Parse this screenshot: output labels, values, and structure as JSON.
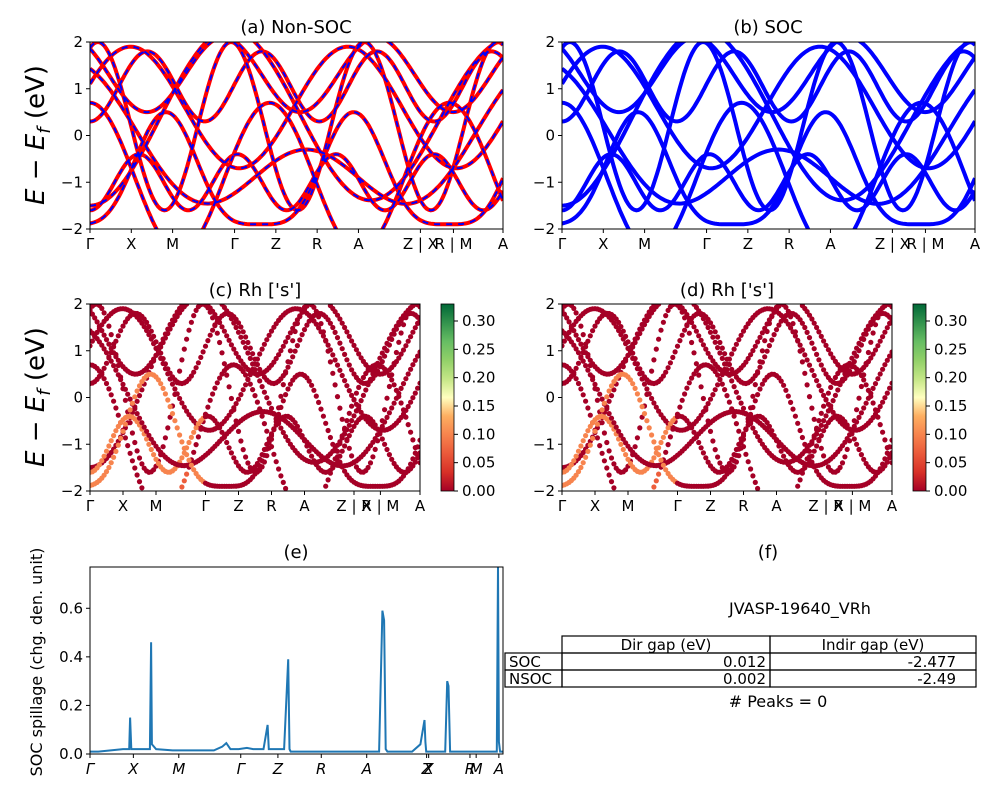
{
  "chart_data": [
    {
      "panel": "a",
      "type": "line",
      "title": "(a) Non-SOC",
      "ylabel": "E − E_f (eV)",
      "ylim": [
        -2,
        2
      ],
      "yticks": [
        "−2",
        "−1",
        "0",
        "1",
        "2"
      ],
      "kpath_labels": [
        "Γ",
        "X",
        "M",
        "Γ",
        "Z",
        "R",
        "A",
        "Z | X",
        "R | M",
        "A"
      ],
      "kpath_positions": [
        0,
        0.1,
        0.2,
        0.35,
        0.45,
        0.55,
        0.65,
        0.8,
        0.88,
        1.0
      ],
      "series": [
        {
          "color": "#ff0000",
          "style": "solid",
          "values_sampled": [
            -1.0,
            0.6,
            1.9,
            -1.9,
            0.4,
            1.95,
            -0.9,
            0.3,
            -1.6,
            -0.5,
            1.0,
            0.2,
            -1.8
          ]
        },
        {
          "color": "#0000ff",
          "style": "dashed",
          "values_sampled": [
            -1.0,
            0.6,
            1.9,
            -1.9,
            0.4,
            1.95,
            -0.9,
            0.3,
            -1.6,
            -0.5,
            1.0,
            0.2,
            -1.8
          ]
        }
      ]
    },
    {
      "panel": "b",
      "type": "line",
      "title": "(b) SOC",
      "ylim": [
        -2,
        2
      ],
      "yticks": [
        "−2",
        "−1",
        "0",
        "1",
        "2"
      ],
      "kpath_labels": [
        "Γ",
        "X",
        "M",
        "Γ",
        "Z",
        "R",
        "A",
        "Z | X",
        "R | M",
        "A"
      ],
      "kpath_positions": [
        0,
        0.1,
        0.2,
        0.35,
        0.45,
        0.55,
        0.65,
        0.8,
        0.88,
        1.0
      ],
      "series": [
        {
          "color": "#0000ff",
          "style": "solid",
          "values_sampled": [
            -1.0,
            0.6,
            1.9,
            -1.9,
            0.4,
            1.95,
            -0.9,
            0.3,
            -1.6,
            -0.5,
            1.0,
            0.2,
            -1.8
          ]
        }
      ]
    },
    {
      "panel": "c",
      "type": "scatter",
      "title": "(c)  Rh ['s']",
      "ylabel": "E − E_f (eV)",
      "ylim": [
        -2,
        2
      ],
      "yticks": [
        "−2",
        "−1",
        "0",
        "1",
        "2"
      ],
      "kpath_labels": [
        "Γ",
        "X",
        "M",
        "Γ",
        "Z",
        "R",
        "A",
        "Z | X",
        "R | M",
        "A"
      ],
      "kpath_positions": [
        0,
        0.1,
        0.2,
        0.35,
        0.45,
        0.55,
        0.65,
        0.8,
        0.88,
        1.0
      ],
      "colorbar": {
        "cmap": "RdYlGn",
        "min": 0.0,
        "max": 0.33,
        "ticks": [
          "0.00",
          "0.05",
          "0.10",
          "0.15",
          "0.20",
          "0.25",
          "0.30"
        ]
      }
    },
    {
      "panel": "d",
      "type": "scatter",
      "title": "(d) Rh ['s']",
      "ylim": [
        -2,
        2
      ],
      "yticks": [
        "−2",
        "−1",
        "0",
        "1",
        "2"
      ],
      "kpath_labels": [
        "Γ",
        "X",
        "M",
        "Γ",
        "Z",
        "R",
        "A",
        "Z | X",
        "R | M",
        "A"
      ],
      "kpath_positions": [
        0,
        0.1,
        0.2,
        0.35,
        0.45,
        0.55,
        0.65,
        0.8,
        0.88,
        1.0
      ],
      "colorbar": {
        "cmap": "RdYlGn",
        "min": 0.0,
        "max": 0.33,
        "ticks": [
          "0.00",
          "0.05",
          "0.10",
          "0.15",
          "0.20",
          "0.25",
          "0.30"
        ]
      }
    },
    {
      "panel": "e",
      "type": "line",
      "title": "(e)",
      "ylabel": "SOC spillage (chg. den. unit)",
      "ylim": [
        0,
        0.77
      ],
      "yticks": [
        "0.0",
        "0.2",
        "0.4",
        "0.6"
      ],
      "xlabels": [
        "Γ",
        "X",
        "M",
        "Γ",
        "Z",
        "R",
        "A",
        "Z",
        "X",
        "R",
        "M",
        "A"
      ],
      "xlabel_positions": [
        0,
        0.105,
        0.215,
        0.365,
        0.455,
        0.56,
        0.67,
        0.815,
        0.82,
        0.92,
        0.935,
        0.99
      ],
      "series": [
        {
          "color": "#1f77b4",
          "x": [
            0,
            0.02,
            0.08,
            0.095,
            0.097,
            0.1,
            0.145,
            0.148,
            0.15,
            0.16,
            0.2,
            0.3,
            0.32,
            0.33,
            0.34,
            0.36,
            0.38,
            0.395,
            0.42,
            0.43,
            0.433,
            0.436,
            0.47,
            0.48,
            0.483,
            0.486,
            0.495,
            0.6,
            0.7,
            0.708,
            0.712,
            0.716,
            0.72,
            0.73,
            0.78,
            0.8,
            0.81,
            0.812,
            0.814,
            0.82,
            0.86,
            0.865,
            0.868,
            0.872,
            0.9,
            0.985,
            0.988,
            0.99,
            0.993,
            1.0
          ],
          "values": [
            0.01,
            0.01,
            0.02,
            0.02,
            0.15,
            0.02,
            0.02,
            0.46,
            0.04,
            0.02,
            0.015,
            0.015,
            0.03,
            0.045,
            0.02,
            0.02,
            0.025,
            0.02,
            0.02,
            0.12,
            0.02,
            0.02,
            0.02,
            0.39,
            0.02,
            0.01,
            0.01,
            0.01,
            0.01,
            0.59,
            0.55,
            0.02,
            0.01,
            0.01,
            0.01,
            0.04,
            0.14,
            0.05,
            0.01,
            0.01,
            0.01,
            0.3,
            0.28,
            0.01,
            0.01,
            0.01,
            0.78,
            0.05,
            0.01,
            0.01
          ]
        }
      ]
    }
  ],
  "panel_f": {
    "title": "(f)",
    "material": "JVASP-19640_VRh",
    "table": {
      "headers": [
        "",
        "Dir gap (eV)",
        "Indir gap (eV)"
      ],
      "rows": [
        [
          "SOC",
          "0.012",
          "-2.477"
        ],
        [
          "NSOC",
          "0.002",
          "-2.49"
        ]
      ]
    },
    "peaks": "# Peaks = 0"
  }
}
